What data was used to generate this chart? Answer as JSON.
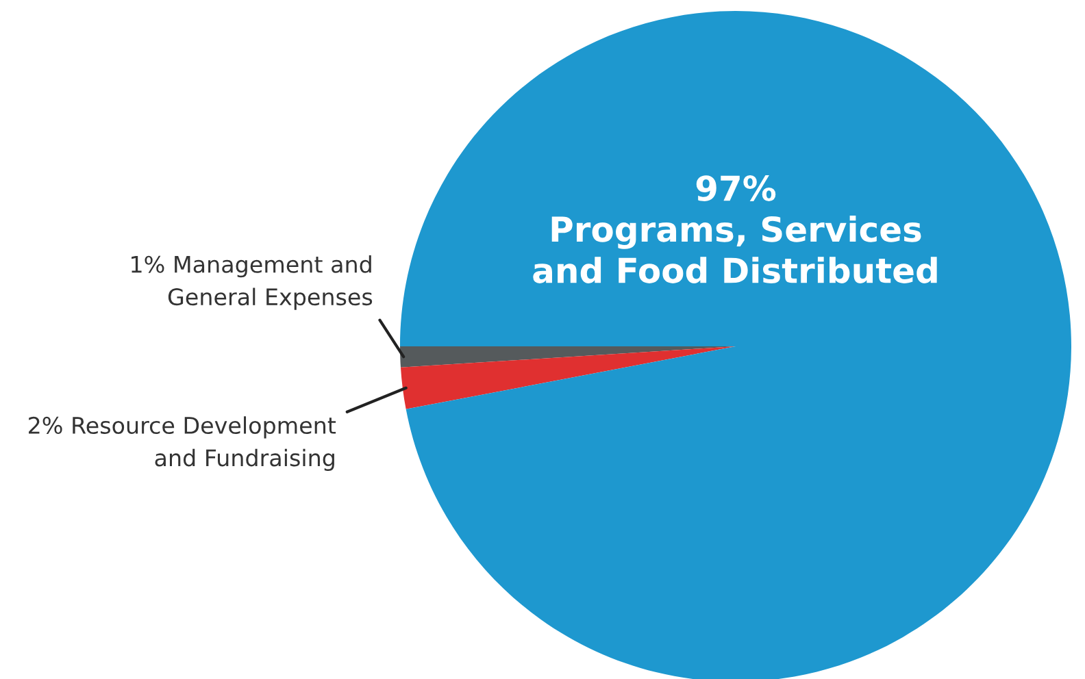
{
  "chart_data": {
    "type": "pie",
    "categories": [
      "Management and\nGeneral Expenses",
      "Resource Development\nand Fundraising",
      "Programs, Services\nand Food Distributed"
    ],
    "values": [
      1,
      2,
      97
    ],
    "value_labels": [
      "1%",
      "2%",
      "97%"
    ],
    "colors": [
      "#555a5c",
      "#e03030",
      "#1e98cf"
    ],
    "legend": false
  }
}
